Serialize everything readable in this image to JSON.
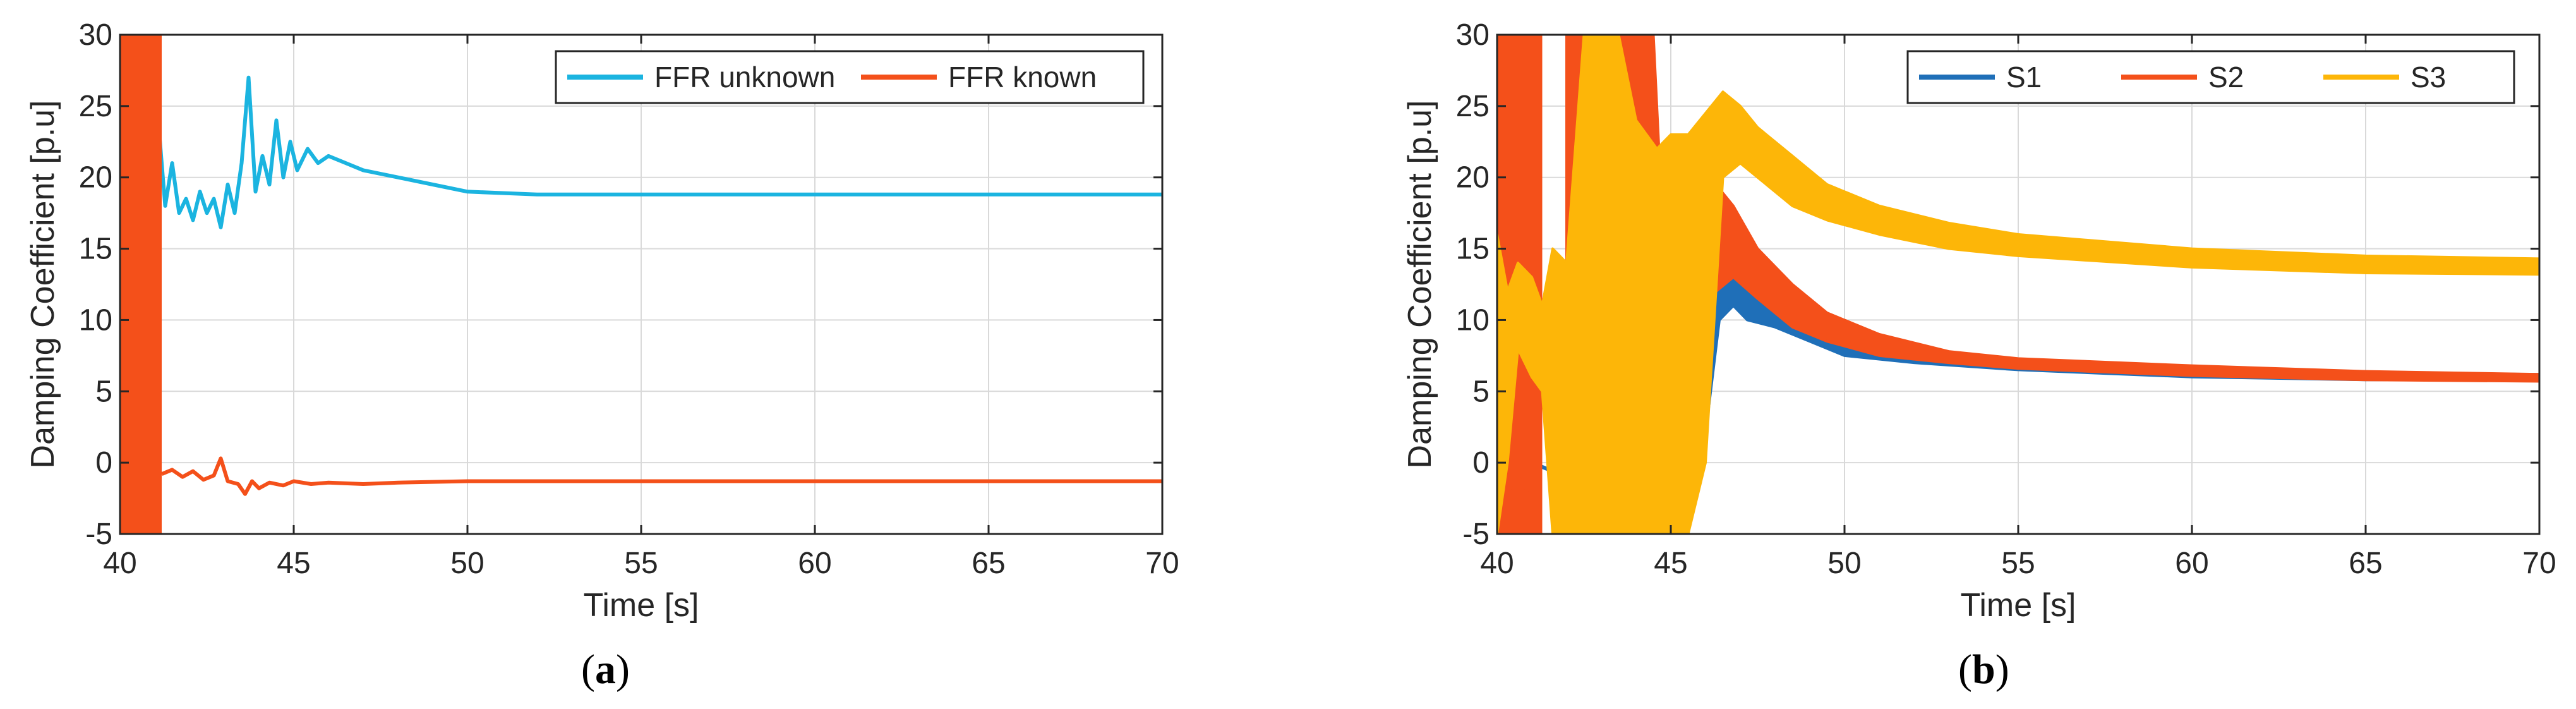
{
  "colors": {
    "ffr_unknown": "#1bb4e0",
    "ffr_known": "#f4501a",
    "s1": "#1f6fb8",
    "s2": "#f4501a",
    "s3": "#fdb608",
    "grid": "#d9d9d9",
    "axis": "#262626"
  },
  "chart_data": [
    {
      "type": "line",
      "panel_label": "a",
      "xlabel": "Time [s]",
      "ylabel": "Damping Coefficient [p.u]",
      "xlim": [
        40,
        70
      ],
      "ylim": [
        -5,
        30
      ],
      "xticks": [
        40,
        45,
        50,
        55,
        60,
        65,
        70
      ],
      "yticks": [
        -5,
        0,
        5,
        10,
        15,
        20,
        25,
        30
      ],
      "grid": true,
      "legend_position": "top-right",
      "legend_columns": 2,
      "series": [
        {
          "name": "FFR unknown",
          "color_key": "ffr_unknown",
          "oscillation_band": {
            "x": [
              40.0,
              40.9
            ],
            "y": [
              -5,
              30
            ]
          },
          "points": [
            [
              40.9,
              19
            ],
            [
              41.1,
              24
            ],
            [
              41.3,
              18
            ],
            [
              41.5,
              21
            ],
            [
              41.7,
              17.5
            ],
            [
              41.9,
              18.5
            ],
            [
              42.1,
              17
            ],
            [
              42.3,
              19
            ],
            [
              42.5,
              17.5
            ],
            [
              42.7,
              18.5
            ],
            [
              42.9,
              16.5
            ],
            [
              43.1,
              19.5
            ],
            [
              43.3,
              17.5
            ],
            [
              43.5,
              21
            ],
            [
              43.7,
              27
            ],
            [
              43.9,
              19
            ],
            [
              44.1,
              21.5
            ],
            [
              44.3,
              19.5
            ],
            [
              44.5,
              24
            ],
            [
              44.7,
              20
            ],
            [
              44.9,
              22.5
            ],
            [
              45.1,
              20.5
            ],
            [
              45.4,
              22
            ],
            [
              45.7,
              21
            ],
            [
              46.0,
              21.5
            ],
            [
              46.5,
              21
            ],
            [
              47,
              20.5
            ],
            [
              48,
              20
            ],
            [
              49,
              19.5
            ],
            [
              50,
              19
            ],
            [
              51,
              18.9
            ],
            [
              52,
              18.8
            ],
            [
              55,
              18.8
            ],
            [
              60,
              18.8
            ],
            [
              65,
              18.8
            ],
            [
              70,
              18.8
            ]
          ]
        },
        {
          "name": "FFR known",
          "color_key": "ffr_known",
          "oscillation_band": {
            "x": [
              40.0,
              41.2
            ],
            "y": [
              -5,
              30
            ]
          },
          "points": [
            [
              41.2,
              -0.8
            ],
            [
              41.5,
              -0.5
            ],
            [
              41.8,
              -1.0
            ],
            [
              42.1,
              -0.6
            ],
            [
              42.4,
              -1.2
            ],
            [
              42.7,
              -0.9
            ],
            [
              42.9,
              0.3
            ],
            [
              43.1,
              -1.3
            ],
            [
              43.4,
              -1.5
            ],
            [
              43.6,
              -2.2
            ],
            [
              43.8,
              -1.3
            ],
            [
              44.0,
              -1.8
            ],
            [
              44.3,
              -1.4
            ],
            [
              44.7,
              -1.6
            ],
            [
              45.0,
              -1.3
            ],
            [
              45.5,
              -1.5
            ],
            [
              46,
              -1.4
            ],
            [
              47,
              -1.5
            ],
            [
              48,
              -1.4
            ],
            [
              50,
              -1.3
            ],
            [
              55,
              -1.3
            ],
            [
              60,
              -1.3
            ],
            [
              65,
              -1.3
            ],
            [
              70,
              -1.3
            ]
          ]
        }
      ]
    },
    {
      "type": "line",
      "panel_label": "b",
      "xlabel": "Time [s]",
      "ylabel": "Damping Coefficient [p.u]",
      "xlim": [
        40,
        70
      ],
      "ylim": [
        -5,
        30
      ],
      "xticks": [
        40,
        45,
        50,
        55,
        60,
        65,
        70
      ],
      "yticks": [
        -5,
        0,
        5,
        10,
        15,
        20,
        25,
        30
      ],
      "grid": true,
      "legend_position": "top-right",
      "legend_columns": 3,
      "series": [
        {
          "name": "S1",
          "color_key": "s1",
          "oscillation_band": {
            "x": [
              40.0,
              41.3
            ],
            "y": [
              -5,
              30
            ]
          },
          "band_envelope": [
            [
              45.2,
              -2,
              5
            ],
            [
              45.6,
              -1,
              10
            ],
            [
              46.0,
              2,
              13
            ],
            [
              46.4,
              10,
              15.5
            ],
            [
              46.8,
              11,
              15
            ],
            [
              47.2,
              10,
              13.5
            ],
            [
              48,
              9.5,
              11.5
            ],
            [
              49,
              8.5,
              10
            ],
            [
              50,
              7.5,
              9
            ],
            [
              52,
              7,
              8
            ],
            [
              55,
              6.5,
              7.2
            ],
            [
              60,
              6.0,
              6.6
            ],
            [
              65,
              5.8,
              6.3
            ],
            [
              70,
              5.8,
              6.2
            ]
          ],
          "points": [
            [
              41.0,
              0
            ],
            [
              41.5,
              -0.5
            ],
            [
              42.0,
              0
            ],
            [
              42.5,
              0.5
            ]
          ]
        },
        {
          "name": "S2",
          "color_key": "s2",
          "oscillation_band": {
            "x": [
              40.0,
              41.3
            ],
            "y": [
              -5,
              30
            ]
          },
          "band_envelope": [
            [
              42.0,
              -5,
              30
            ],
            [
              44.5,
              -5,
              30
            ],
            [
              45.0,
              -5,
              5
            ],
            [
              45.4,
              -2,
              12
            ],
            [
              45.8,
              1,
              16
            ],
            [
              46.3,
              12,
              19.5
            ],
            [
              46.8,
              13,
              18
            ],
            [
              47.5,
              11.5,
              15
            ],
            [
              48.5,
              9.5,
              12.5
            ],
            [
              49.5,
              8.5,
              10.5
            ],
            [
              51,
              7.5,
              9
            ],
            [
              53,
              7,
              7.8
            ],
            [
              55,
              6.6,
              7.3
            ],
            [
              60,
              6.1,
              6.8
            ],
            [
              65,
              5.8,
              6.4
            ],
            [
              70,
              5.7,
              6.2
            ]
          ],
          "points": [
            [
              40.3,
              -3
            ],
            [
              40.6,
              -1
            ],
            [
              40.9,
              -2
            ]
          ]
        },
        {
          "name": "S3",
          "color_key": "s3",
          "band_envelope": [
            [
              40.0,
              -5,
              16
            ],
            [
              40.3,
              0,
              12
            ],
            [
              40.6,
              8,
              14
            ],
            [
              41.0,
              6,
              13
            ],
            [
              41.3,
              5,
              11
            ],
            [
              41.6,
              -5,
              15
            ],
            [
              42.0,
              -5,
              14
            ],
            [
              42.5,
              -5,
              30
            ],
            [
              43.5,
              -5,
              30
            ],
            [
              44.0,
              -5,
              24
            ],
            [
              44.6,
              -5,
              22
            ],
            [
              45.0,
              -5,
              23
            ],
            [
              45.5,
              -5,
              23
            ],
            [
              46.0,
              0,
              24.5
            ],
            [
              46.5,
              20,
              26
            ],
            [
              47.0,
              21,
              25
            ],
            [
              47.5,
              20,
              23.5
            ],
            [
              48.5,
              18,
              21.5
            ],
            [
              49.5,
              17,
              19.5
            ],
            [
              51,
              16,
              18
            ],
            [
              53,
              15,
              16.8
            ],
            [
              55,
              14.5,
              16
            ],
            [
              60,
              13.7,
              15
            ],
            [
              65,
              13.3,
              14.5
            ],
            [
              70,
              13.2,
              14.3
            ]
          ],
          "points": []
        }
      ]
    }
  ]
}
